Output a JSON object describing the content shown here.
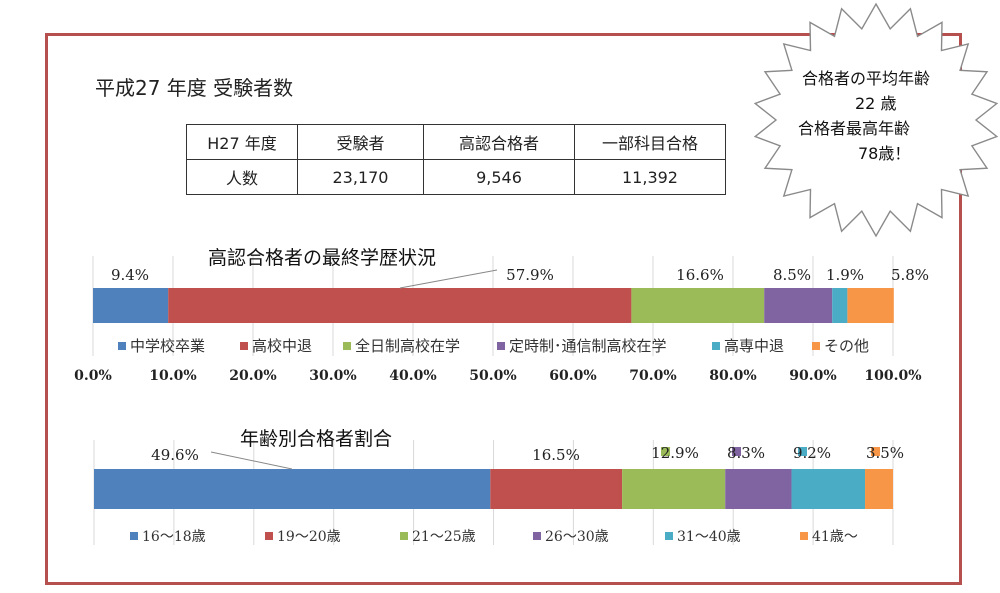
{
  "page": {
    "title": "平成27 年度 受験者数"
  },
  "stats_table": {
    "headers": [
      "H27 年度",
      "受験者",
      "高認合格者",
      "一部科目合格"
    ],
    "row_label": "人数",
    "values": [
      "23,170",
      "9,546",
      "11,392"
    ]
  },
  "callout": {
    "lines": [
      "合格者の平均年齢",
      "22 歳",
      "合格者最高年齢",
      "78歳！"
    ]
  },
  "chart_data": [
    {
      "type": "bar",
      "orientation": "horizontal-stacked-100",
      "title": "高認合格者の最終学歴状況",
      "series": [
        {
          "name": "中学校卒業",
          "value": 9.4,
          "label": "9.4%",
          "color": "#4f81bd"
        },
        {
          "name": "高校中退",
          "value": 57.9,
          "label": "57.9%",
          "color": "#c0504d"
        },
        {
          "name": "全日制高校在学",
          "value": 16.6,
          "label": "16.6%",
          "color": "#9bbb59"
        },
        {
          "name": "定時制･通信制高校在学",
          "value": 8.5,
          "label": "8.5%",
          "color": "#8064a2"
        },
        {
          "name": "高専中退",
          "value": 1.9,
          "label": "1.9%",
          "color": "#4bacc6"
        },
        {
          "name": "その他",
          "value": 5.8,
          "label": "5.8%",
          "color": "#f79646"
        }
      ],
      "x_ticks": [
        "0.0%",
        "10.0%",
        "20.0%",
        "30.0%",
        "40.0%",
        "50.0%",
        "60.0%",
        "70.0%",
        "80.0%",
        "90.0%",
        "100.0%"
      ],
      "xlim": [
        0,
        100
      ],
      "grid": true,
      "legend": "bottom"
    },
    {
      "type": "bar",
      "orientation": "horizontal-stacked-100",
      "title": "年齢別合格者割合",
      "series": [
        {
          "name": "16～18歳",
          "value": 49.6,
          "label": "49.6%",
          "color": "#4f81bd"
        },
        {
          "name": "19～20歳",
          "value": 16.5,
          "label": "16.5%",
          "color": "#c0504d"
        },
        {
          "name": "21～25歳",
          "value": 12.9,
          "label": "12.9%",
          "color": "#9bbb59"
        },
        {
          "name": "26～30歳",
          "value": 8.3,
          "label": "8.3%",
          "color": "#8064a2"
        },
        {
          "name": "31～40歳",
          "value": 9.2,
          "label": "9.2%",
          "color": "#4bacc6"
        },
        {
          "name": "41歳～",
          "value": 3.5,
          "label": "3.5%",
          "color": "#f79646"
        }
      ],
      "xlim": [
        0,
        100
      ],
      "grid": true,
      "legend": "bottom"
    }
  ]
}
